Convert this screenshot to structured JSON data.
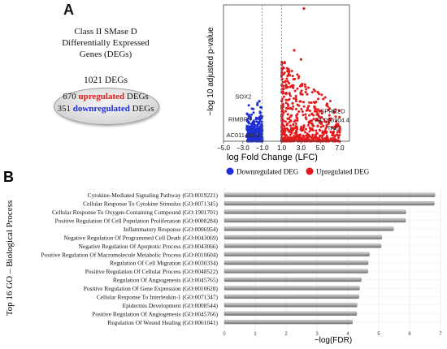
{
  "panels": {
    "a_label": "A",
    "b_label": "B"
  },
  "summary": {
    "title_lines": [
      "Class II SMase D",
      "Differentially Expressed",
      "Genes (DEGs)"
    ],
    "total_label": "1021 DEGs",
    "up_count": "670",
    "up_word": "upregulated",
    "up_suffix": "DEGs",
    "down_count": "351",
    "down_word": "downregulated",
    "down_suffix": "DEGs"
  },
  "chart_data": [
    {
      "type": "scatter",
      "title": "",
      "xlabel": "log Fold Change (LFC)",
      "ylabel": "−log 10 adjusted p-value",
      "xlim": [
        -5.0,
        8.0
      ],
      "ylim": [
        0,
        75
      ],
      "x_ticks": [
        "−5.0",
        "−3.0",
        "−1.0",
        "1.0",
        "3.0",
        "5.0",
        "7.0"
      ],
      "x_tick_values": [
        -5.0,
        -3.0,
        -1.0,
        1.0,
        3.0,
        5.0,
        7.0
      ],
      "thresholds": [
        -1.0,
        1.0
      ],
      "legend_placement": "bottom",
      "series": [
        {
          "name": "Downregulated DEG",
          "color": "#1f2fd6",
          "count": 351,
          "x_range": [
            -2.6,
            -1.0
          ],
          "y_range": [
            0,
            22
          ]
        },
        {
          "name": "Upregulated DEG",
          "color": "#e41a1c",
          "count": 670,
          "x_range": [
            1.0,
            7.0
          ],
          "y_range": [
            0,
            75
          ]
        }
      ],
      "highlight_points": [
        {
          "x": 7.0,
          "y": 7.0
        },
        {
          "x": 7.0,
          "y": 5.0
        },
        {
          "x": 6.5,
          "y": 3.0
        },
        {
          "x": 3.3,
          "y": 73.0
        },
        {
          "x": 2.3,
          "y": 50.0
        },
        {
          "x": 3.0,
          "y": 45.0
        },
        {
          "x": -1.3,
          "y": 22.0
        },
        {
          "x": -1.5,
          "y": 20.0
        },
        {
          "x": -1.1,
          "y": 18.5
        },
        {
          "x": -1.9,
          "y": 6.0
        },
        {
          "x": -1.7,
          "y": 4.0
        },
        {
          "x": -2.6,
          "y": 2.5
        },
        {
          "x": -2.2,
          "y": 3.0
        },
        {
          "x": 6.8,
          "y": 9.5
        }
      ],
      "annotations": [
        {
          "text": "SOX2",
          "x": -3.8,
          "y": 23.5
        },
        {
          "text": "RIMBP3",
          "x": -4.5,
          "y": 11.0
        },
        {
          "text": "AC011466.3",
          "x": -4.7,
          "y": 2.2
        },
        {
          "text": "SPRR2D",
          "x": 5.0,
          "y": 15.5
        },
        {
          "text": "AC093904.4",
          "x": 4.5,
          "y": 10.5
        },
        {
          "text": "TAC1",
          "x": 5.7,
          "y": 6.0
        }
      ]
    },
    {
      "type": "bar",
      "orientation": "horizontal",
      "title": "",
      "xlabel": "−log(FDR)",
      "ylabel": "Top 16 GO – Biological Process",
      "xlim": [
        0,
        7
      ],
      "x_ticks": [
        0,
        1,
        2,
        3,
        4,
        5,
        6,
        7
      ],
      "grid": true,
      "bar_color": "#9a9a9a",
      "categories": [
        "Cytokine-Mediated Signaling Pathway (GO:0019221)",
        "Cellular Response To Cytokine Stimulus (GO:0071345)",
        "Cellular Response To Oxygen-Containing Compound (GO:1901701)",
        "Positive Regulation Of Cell Population Proliferation (GO:0008284)",
        "Inflammatory Response (GO:0006954)",
        "Negative Regulation Of Programmed Cell Death (GO:0043069)",
        "Negative Regulation Of Apoptotic Process (GO:0043066)",
        "Positive Regulation Of Macromolecule Metabolic Process (GO:0010604)",
        "Regulation Of Cell Migration (GO:0030334)",
        "Positive Regulation Of Cellular Process (GO:0048522)",
        "Regulation Of Angiogenesis (GO:0045765)",
        "Positive Regulation Of Gene Expression (GO:0010628)",
        "Cellular Response To Interleukin-1 (GO:0071347)",
        "Epidermis Development (GO:0008544)",
        "Positive Regulation Of Angiogenesis (GO:0045766)",
        "Regulation Of Wound Healing (GO:0061041)"
      ],
      "values": [
        6.82,
        6.8,
        5.88,
        5.87,
        5.48,
        5.1,
        5.08,
        4.7,
        4.66,
        4.65,
        4.44,
        4.38,
        4.36,
        4.3,
        4.29,
        4.15
      ]
    }
  ]
}
